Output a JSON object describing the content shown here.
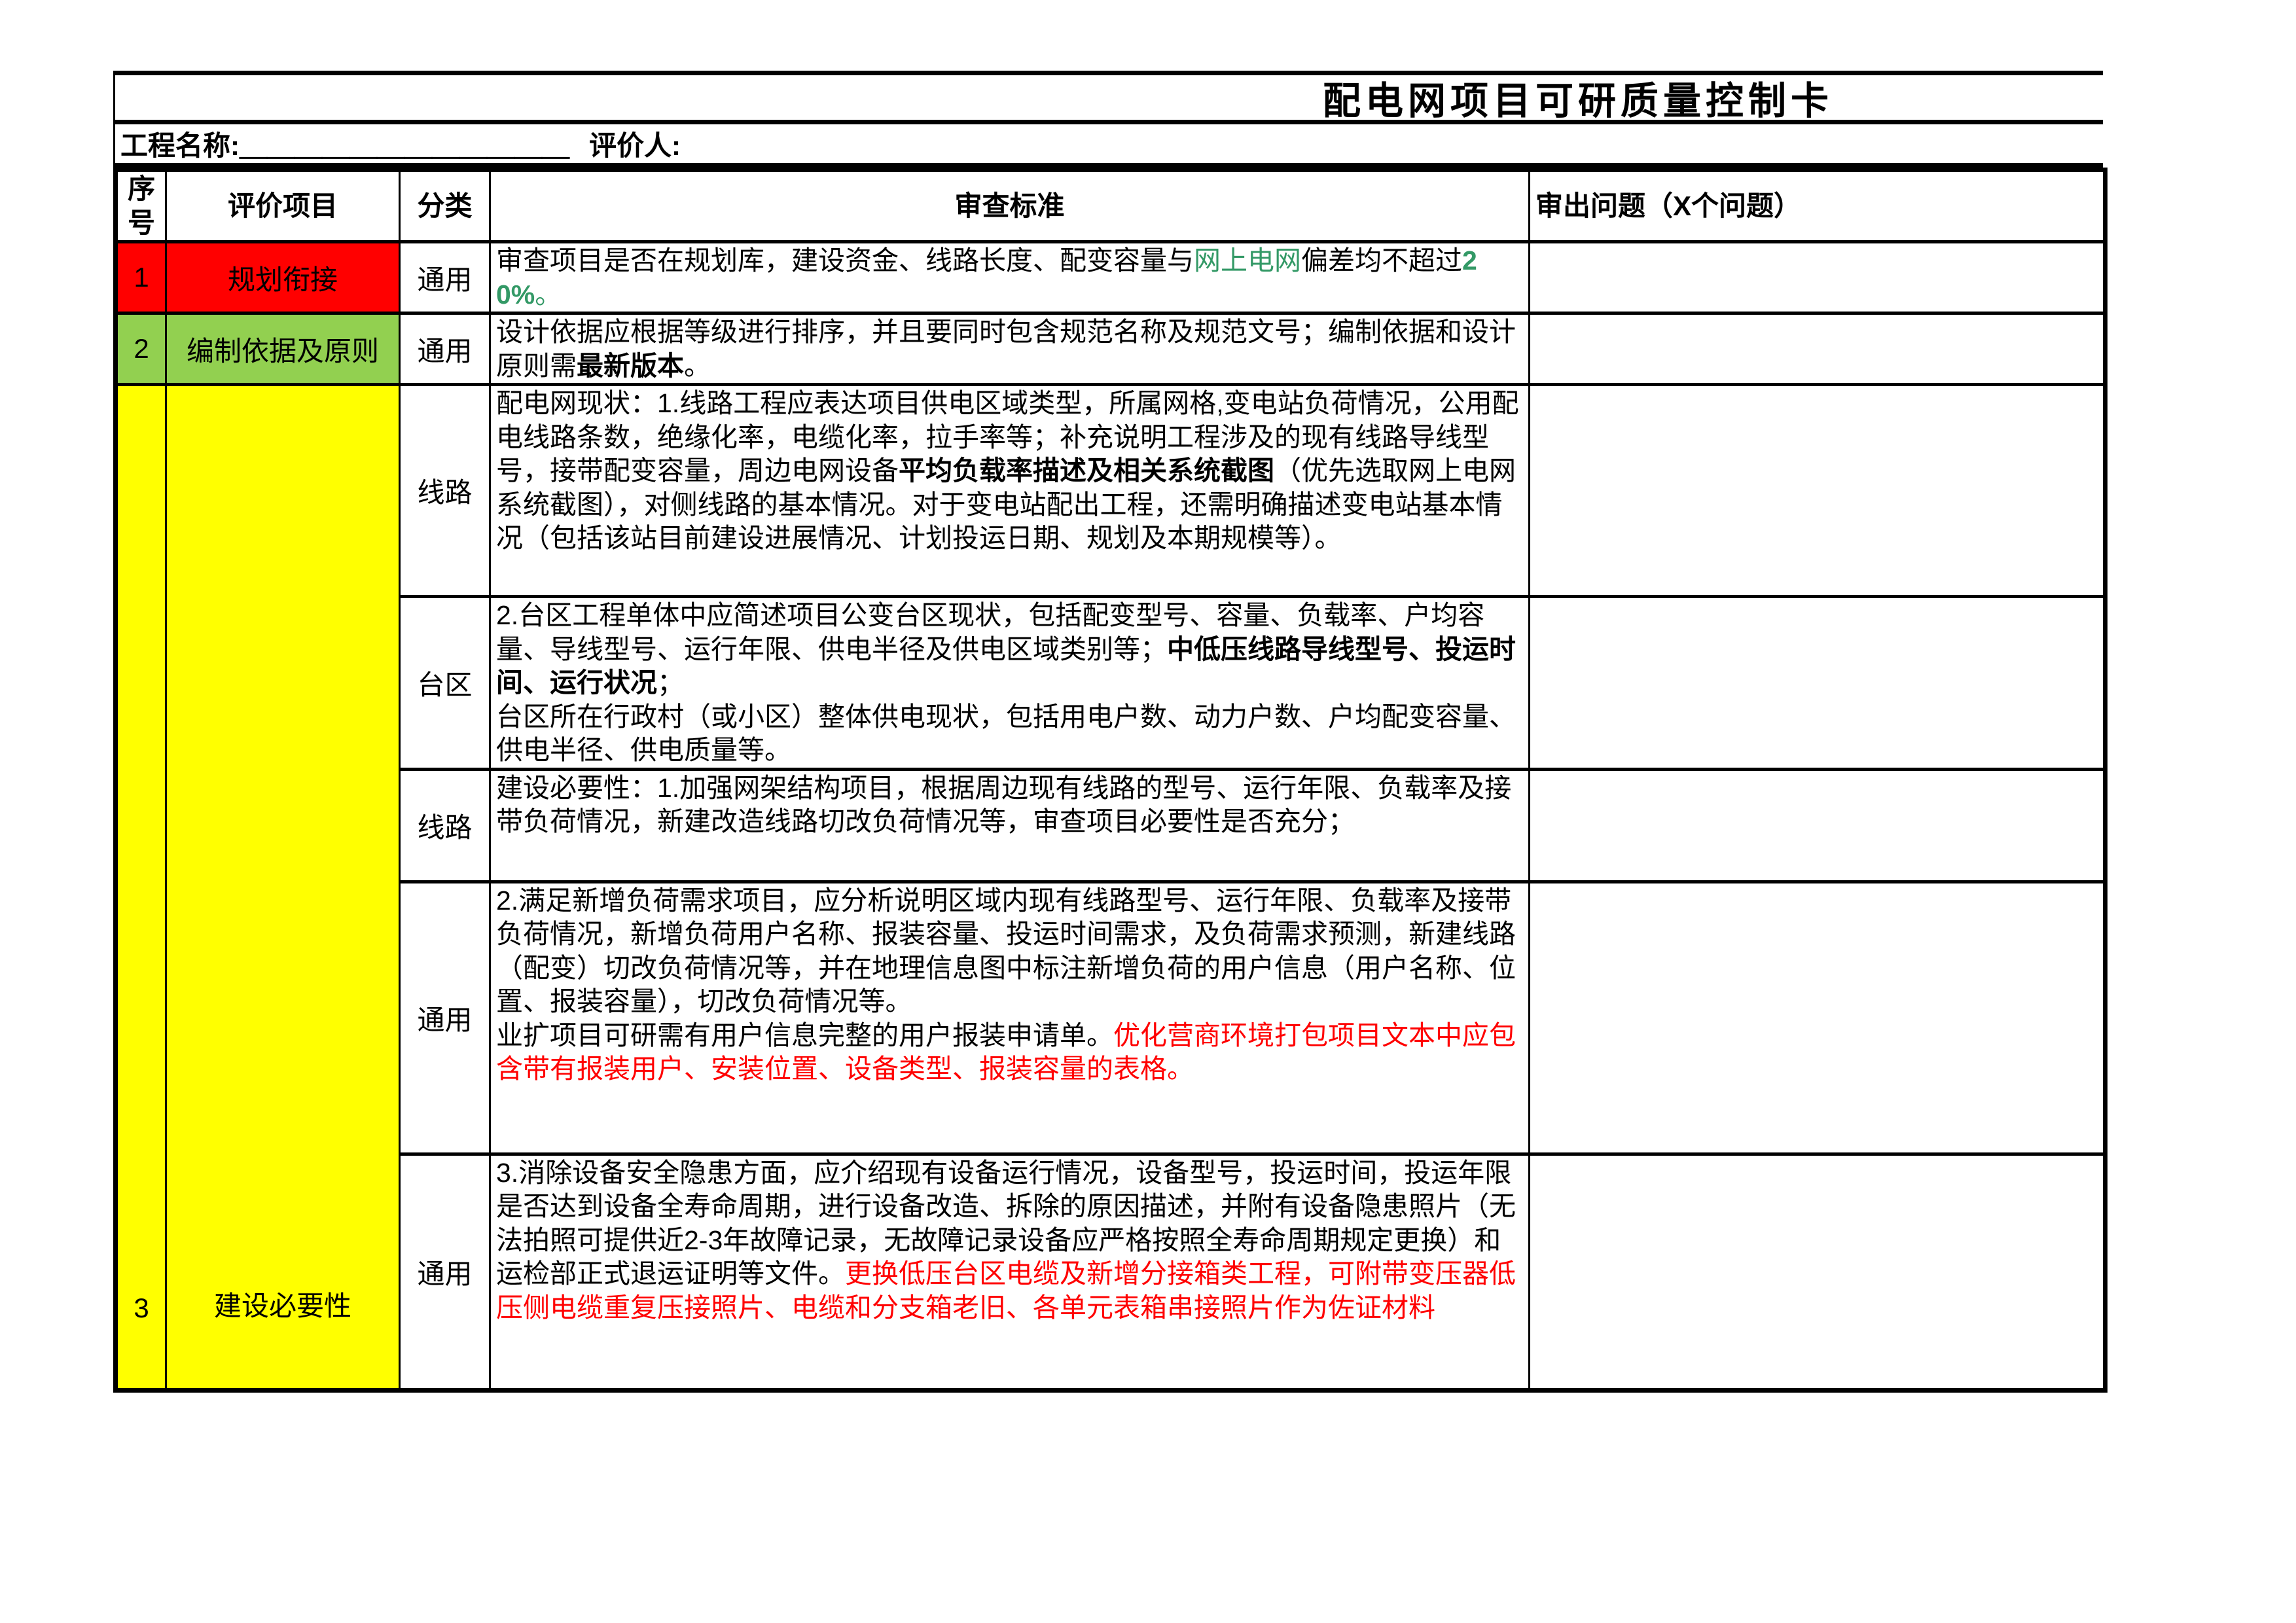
{
  "title": "配电网项目可研质量控制卡",
  "meta": {
    "project_label": "工程名称:",
    "project_blank": "＿＿＿＿＿＿＿＿＿＿＿＿",
    "evaluator_label": "评价人:",
    "evaluator_blank": ""
  },
  "colors": {
    "red_fill": "#FF0000",
    "green_fill": "#92D050",
    "yellow_fill": "#FFFF00",
    "green_text": "#339966",
    "red_text": "#FF0000",
    "border": "#000000"
  },
  "table": {
    "headers": {
      "no": "序号",
      "item": "评价项目",
      "category": "分类",
      "standard": "审查标准",
      "issues": "审出问题（X个问题）"
    },
    "rows": [
      {
        "no": "1",
        "item": "规划衔接",
        "fill": "#FF0000",
        "subrows": [
          {
            "category": "通用",
            "standard": [
              {
                "t": "审查项目是否在规划库，建设资金、线路长度、配变容量与"
              },
              {
                "t": "网上电网",
                "c": "green"
              },
              {
                "t": "偏差均不超过"
              },
              {
                "t": "20%",
                "c": "green",
                "b": true
              },
              {
                "t": "。",
                "c": "green"
              }
            ],
            "issues": ""
          }
        ]
      },
      {
        "no": "2",
        "item": "编制依据及原则",
        "fill": "#92D050",
        "subrows": [
          {
            "category": "通用",
            "standard": [
              {
                "t": "设计依据应根据等级进行排序，并且要同时包含规范名称及规范文号；编制依据和设计原则需"
              },
              {
                "t": "最新版本",
                "b": true
              },
              {
                "t": "。"
              }
            ],
            "issues": ""
          }
        ]
      },
      {
        "no": "3",
        "item": "建设必要性",
        "fill": "#FFFF00",
        "subrows": [
          {
            "category": "线路",
            "standard": [
              {
                "t": "配电网现状：1.线路工程应表达项目供电区域类型，所属网格,变电站负荷情况，公用配电线路条数，绝缘化率，电缆化率，拉手率等；补充说明工程涉及的现有线路导线型号，接带配变容量，周边电网设备"
              },
              {
                "t": "平均负载率描述及相关系统截图",
                "b": true
              },
              {
                "t": "（优先选取网上电网系统截图），对侧线路的基本情况。对于变电站配出工程，还需明确描述变电站基本情况（包括该站目前建设进展情况、计划投运日期、规划及本期规模等）。"
              }
            ],
            "issues": ""
          },
          {
            "category": "台区",
            "standard": [
              {
                "t": "2.台区工程单体中应简述项目公变台区现状，包括配变型号、容量、负载率、户均容量、导线型号、运行年限、供电半径及供电区域类别等；"
              },
              {
                "t": "中低压线路导线型号、投运时间、运行状况",
                "b": true
              },
              {
                "t": "；\n台区所在行政村（或小区）整体供电现状，包括用电户数、动力户数、户均配变容量、供电半径、供电质量等。"
              }
            ],
            "issues": ""
          },
          {
            "category": "线路",
            "standard": [
              {
                "t": "建设必要性：1.加强网架结构项目，根据周边现有线路的型号、运行年限、负载率及接带负荷情况，新建改造线路切改负荷情况等，审查项目必要性是否充分；"
              }
            ],
            "issues": ""
          },
          {
            "category": "通用",
            "standard": [
              {
                "t": "2.满足新增负荷需求项目，应分析说明区域内现有线路型号、运行年限、负载率及接带负荷情况，新增负荷用户名称、报装容量、投运时间需求，及负荷需求预测，新建线路（配变）切改负荷情况等，并在地理信息图中标注新增负荷的用户信息（用户名称、位置、报装容量），切改负荷情况等。\n业扩项目可研需有用户信息完整的用户报装申请单。"
              },
              {
                "t": "优化营商环境打包项目文本中应包含带有报装用户、安装位置、设备类型、报装容量的表格。",
                "c": "red"
              }
            ],
            "issues": ""
          },
          {
            "category": "通用",
            "standard": [
              {
                "t": "3.消除设备安全隐患方面，应介绍现有设备运行情况，设备型号，投运时间，投运年限是否达到设备全寿命周期，进行设备改造、拆除的原因描述，并附有设备隐患照片（无法拍照可提供近2-3年故障记录，无故障记录设备应严格按照全寿命周期规定更换）和运检部正式退运证明等文件。"
              },
              {
                "t": "更换低压台区电缆及新增分接箱类工程，可附带变压器低压侧电缆重复压接照片、电缆和分支箱老旧、各单元表箱串接照片作为佐证材料",
                "c": "red"
              }
            ],
            "issues": ""
          }
        ]
      }
    ]
  }
}
